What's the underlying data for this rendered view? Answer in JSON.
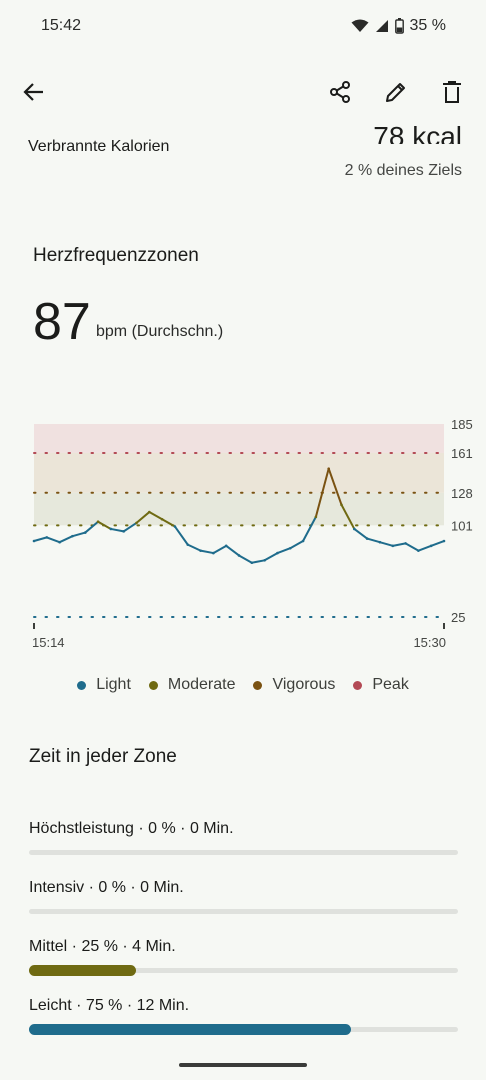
{
  "status_bar": {
    "time": "15:42",
    "battery": "35 %"
  },
  "toolbar": {
    "back": "back",
    "share": "share",
    "edit": "edit",
    "delete": "delete"
  },
  "calories": {
    "label": "Verbrannte Kalorien",
    "value": "78 kcal",
    "goal": "2 % deines Ziels"
  },
  "heart_zones": {
    "title": "Herzfrequenzzonen",
    "avg_value": "87",
    "avg_unit": "bpm (Durchschn.)"
  },
  "legend": [
    {
      "label": "Light",
      "color": "#1f6c8c"
    },
    {
      "label": "Moderate",
      "color": "#6f6a12"
    },
    {
      "label": "Vigorous",
      "color": "#7a5212"
    },
    {
      "label": "Peak",
      "color": "#b34a55"
    }
  ],
  "chart_data": {
    "type": "line",
    "xlabel": "",
    "ylabel": "",
    "x_ticks": [
      "15:14",
      "15:30"
    ],
    "y_ticks": [
      185,
      161,
      128,
      101,
      25
    ],
    "ylim": [
      25,
      185
    ],
    "zones": [
      {
        "name": "Peak",
        "from": 161,
        "to": 185,
        "color": "#f0e1e0"
      },
      {
        "name": "Vigorous",
        "from": 128,
        "to": 161,
        "color": "#ebe5d8"
      },
      {
        "name": "Moderate",
        "from": 101,
        "to": 128,
        "color": "#e6e8dc"
      }
    ],
    "x": [
      0,
      0.5,
      1,
      1.5,
      2,
      2.5,
      3,
      3.5,
      4,
      4.5,
      5,
      5.5,
      6,
      6.5,
      7,
      7.5,
      8,
      8.5,
      9,
      9.5,
      10,
      10.5,
      11,
      11.5,
      12,
      12.5,
      13,
      13.5,
      14,
      14.5,
      15,
      15.5,
      16
    ],
    "y": [
      88,
      91,
      87,
      92,
      95,
      104,
      98,
      96,
      103,
      112,
      106,
      100,
      85,
      80,
      78,
      84,
      76,
      70,
      72,
      78,
      82,
      88,
      108,
      148,
      118,
      98,
      90,
      87,
      84,
      86,
      80,
      84,
      88
    ]
  },
  "zones_section": {
    "title": "Zeit in jeder Zone",
    "items": [
      {
        "label": "Höchstleistung · 0 % · 0 Min.",
        "percent": 0,
        "color": "#b34a55"
      },
      {
        "label": "Intensiv · 0 % · 0 Min.",
        "percent": 0,
        "color": "#7a5212"
      },
      {
        "label": "Mittel · 25 % · 4 Min.",
        "percent": 25,
        "color": "#6f6a12"
      },
      {
        "label": "Leicht · 75 % · 12 Min.",
        "percent": 75,
        "color": "#1f6c8c"
      }
    ]
  }
}
